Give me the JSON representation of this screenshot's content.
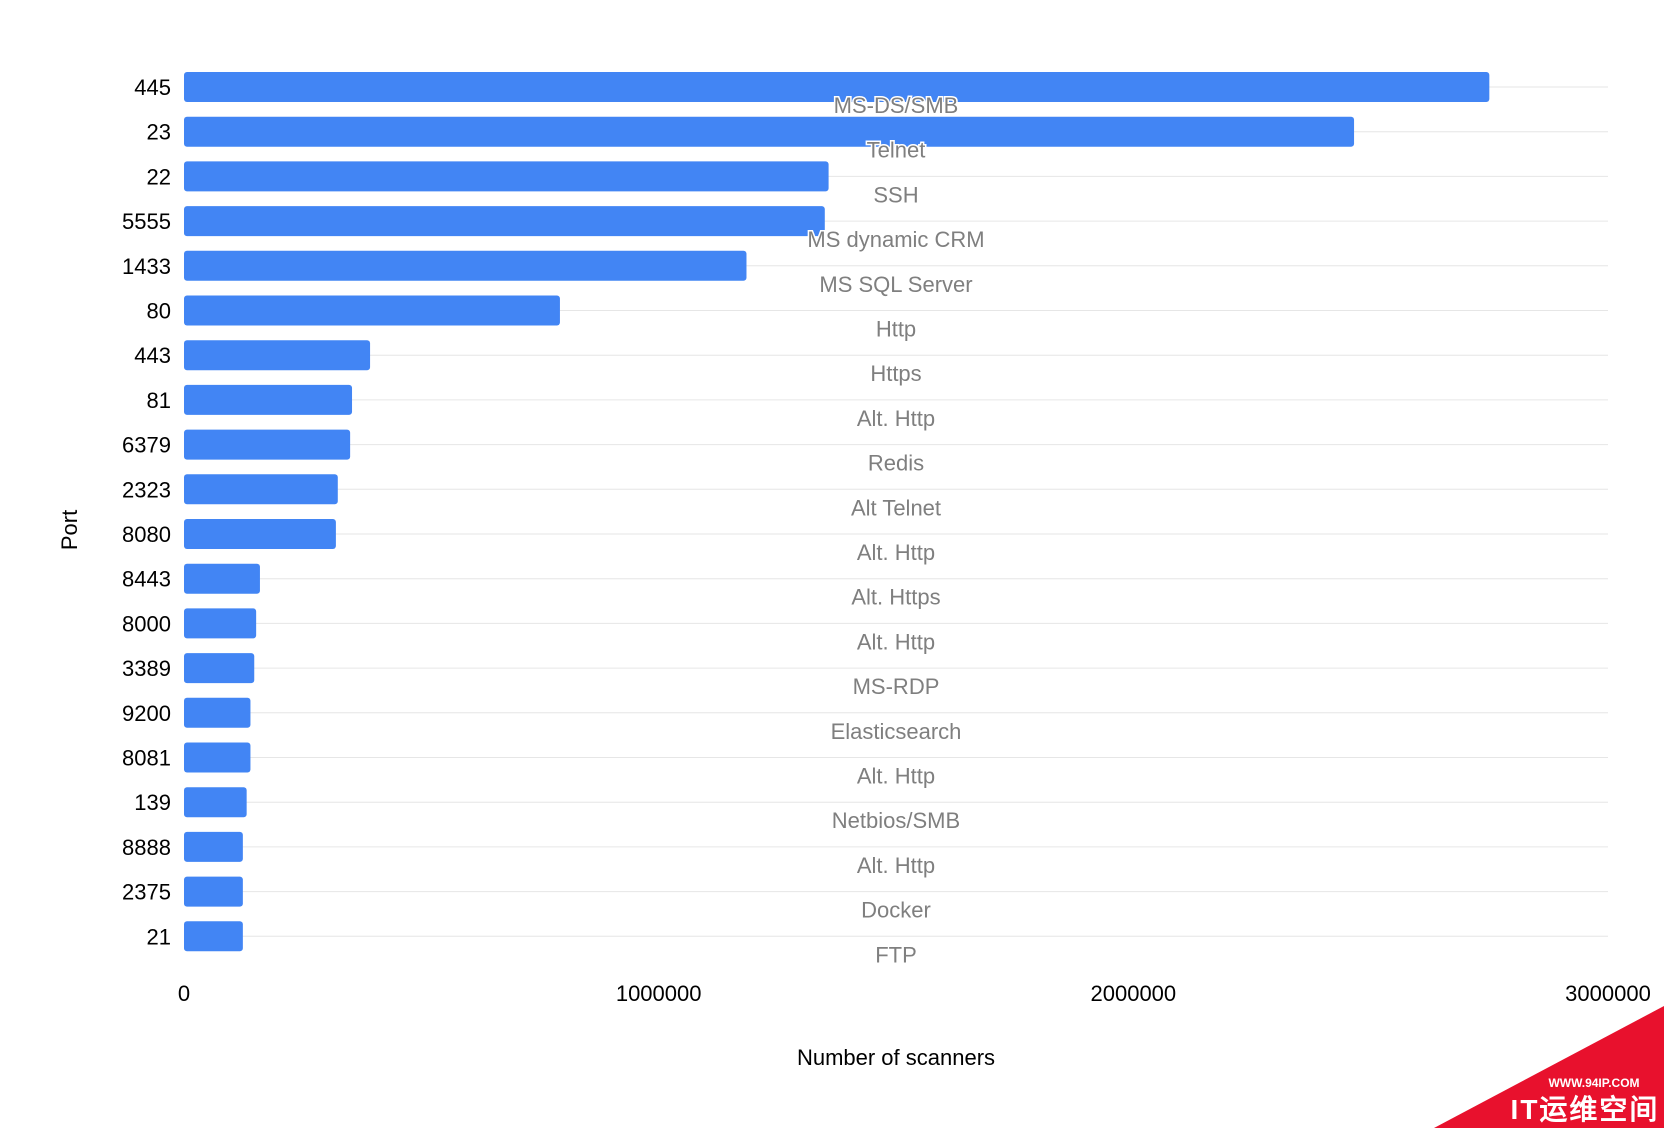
{
  "chart_data": {
    "type": "bar",
    "orientation": "horizontal",
    "categories": [
      "445",
      "23",
      "22",
      "5555",
      "1433",
      "80",
      "443",
      "81",
      "6379",
      "2323",
      "8080",
      "8443",
      "8000",
      "3389",
      "9200",
      "8081",
      "139",
      "8888",
      "2375",
      "21"
    ],
    "values": [
      2750000,
      2465000,
      1358000,
      1350000,
      1185000,
      792000,
      392000,
      354000,
      350000,
      324000,
      320000,
      160000,
      152000,
      148000,
      140000,
      140000,
      132000,
      124000,
      124000,
      124000
    ],
    "annotations": [
      "MS-DS/SMB",
      "Telnet",
      "SSH",
      "MS dynamic CRM",
      "MS SQL Server",
      "Http",
      "Https",
      "Alt. Http",
      "Redis",
      "Alt Telnet",
      "Alt. Http",
      "Alt. Https",
      "Alt. Http",
      "MS-RDP",
      "Elasticsearch",
      "Alt. Http",
      "Netbios/SMB",
      "Alt. Http",
      "Docker",
      "FTP"
    ],
    "xlabel": "Number of scanners",
    "ylabel": "Port",
    "xlim": [
      0,
      3000000
    ],
    "xticks": [
      "0",
      "1000000",
      "2000000",
      "3000000"
    ],
    "grid": true,
    "colors": {
      "bar": "#4285f4",
      "grid": "#e6e6e6",
      "annotation": "#7f7f7f"
    }
  },
  "watermark": {
    "url": "WWW.94IP.COM",
    "name": "IT运维空间",
    "color": "#e8112d"
  }
}
